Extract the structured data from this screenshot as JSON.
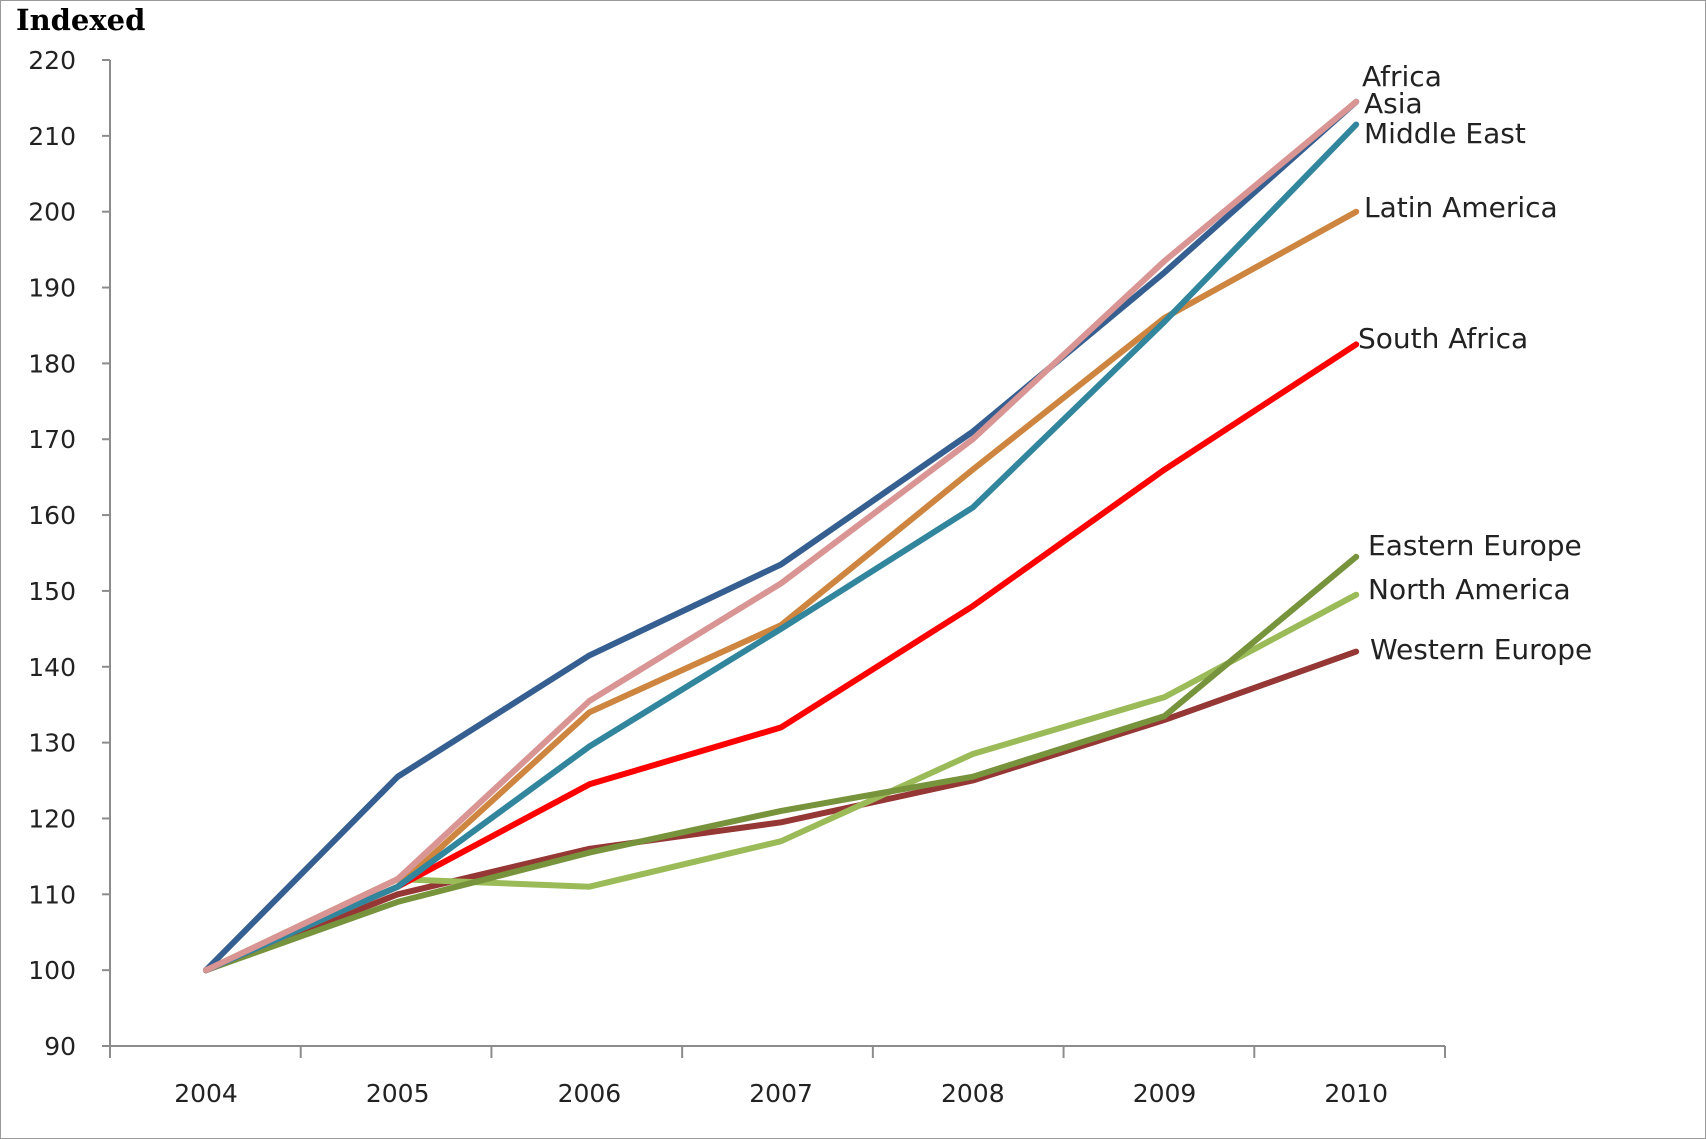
{
  "chart_data": {
    "type": "line",
    "ylabel": "Indexed",
    "xlabel": "",
    "title": "",
    "x": [
      "2004",
      "2005",
      "2006",
      "2007",
      "2008",
      "2009",
      "2010"
    ],
    "ylim": [
      90,
      220
    ],
    "yticks": [
      90,
      100,
      110,
      120,
      130,
      140,
      150,
      160,
      170,
      180,
      190,
      200,
      210,
      220
    ],
    "grid": false,
    "legend": "inline labels at line ends",
    "series": [
      {
        "name": "Western Europe",
        "color": "#953735",
        "values": [
          100,
          110,
          116,
          119.5,
          125,
          133,
          142
        ]
      },
      {
        "name": "North America",
        "color": "#9BBB59",
        "values": [
          100,
          112,
          111,
          117,
          128.5,
          136,
          149.5
        ]
      },
      {
        "name": "Eastern Europe",
        "color": "#77933C",
        "values": [
          100,
          109,
          115.5,
          121,
          125.5,
          133.5,
          154.5
        ]
      },
      {
        "name": "South Africa",
        "color": "#FF0000",
        "values": [
          100,
          111,
          124.5,
          132,
          148,
          166,
          182.5
        ]
      },
      {
        "name": "Latin America",
        "color": "#CD853F",
        "values": [
          100,
          111,
          134,
          145.5,
          166,
          186,
          200
        ]
      },
      {
        "name": "Middle East",
        "color": "#31859C",
        "values": [
          100,
          111,
          129.5,
          145,
          161,
          185.5,
          211.5
        ]
      },
      {
        "name": "Asia",
        "color": "#365F91",
        "values": [
          100,
          125.5,
          141.5,
          153.5,
          171,
          192,
          214.5
        ]
      },
      {
        "name": "Africa",
        "color": "#D99594",
        "values": [
          100,
          112,
          135.5,
          151,
          170,
          193.5,
          214.5
        ]
      }
    ],
    "end_labels": [
      {
        "series": "Africa",
        "text": "Africa"
      },
      {
        "series": "Asia",
        "text": "Asia"
      },
      {
        "series": "Middle East",
        "text": "Middle East"
      },
      {
        "series": "Latin America",
        "text": "Latin America"
      },
      {
        "series": "South Africa",
        "text": "South Africa"
      },
      {
        "series": "Eastern Europe",
        "text": "Eastern Europe"
      },
      {
        "series": "North America",
        "text": "North America"
      },
      {
        "series": "Western Europe",
        "text": "Western Europe"
      }
    ]
  }
}
